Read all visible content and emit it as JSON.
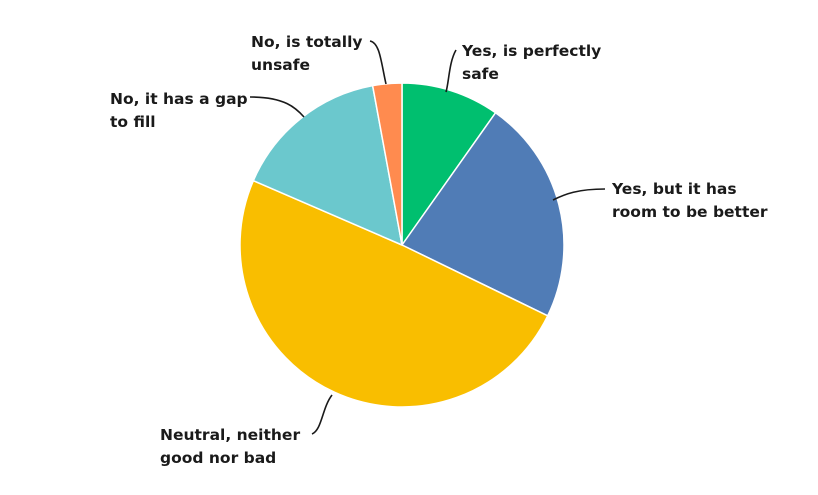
{
  "chart_data": {
    "type": "pie",
    "title": "",
    "start_angle_deg": 0,
    "direction": "clockwise",
    "slices": [
      {
        "label_lines": [
          "Yes, is perfectly",
          "safe"
        ],
        "value": 9.8,
        "color": "#00bf6f"
      },
      {
        "label_lines": [
          "Yes, but it has",
          "room to be better"
        ],
        "value": 22.4,
        "color": "#507cb6"
      },
      {
        "label_lines": [
          "Neutral, neither",
          "good nor bad"
        ],
        "value": 49.3,
        "color": "#f9be00"
      },
      {
        "label_lines": [
          "No, it has a gap",
          "to fill"
        ],
        "value": 15.6,
        "color": "#6bc8cd"
      },
      {
        "label_lines": [
          "No, is totally",
          "unsafe"
        ],
        "value": 2.9,
        "color": "#ff8b4f"
      }
    ]
  }
}
